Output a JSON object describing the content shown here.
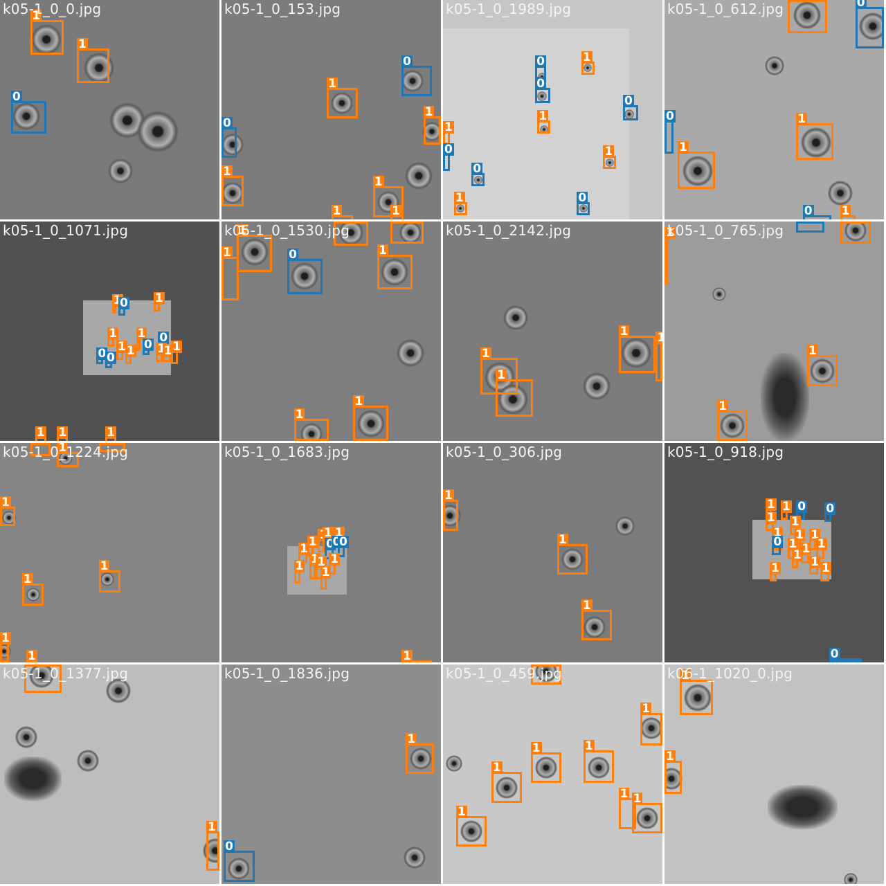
{
  "colors": {
    "class_0": "#1f77b4",
    "class_1": "#ff7f0e",
    "caption": "#f4f4f4",
    "separator": "#ffffff"
  },
  "tiles": [
    {
      "name": "k05-1_0_0.jpg",
      "bg": "#7a7a7a",
      "boxes": [
        [
          "1",
          0.14,
          0.09,
          0.15,
          0.16
        ],
        [
          "1",
          0.35,
          0.22,
          0.15,
          0.16
        ],
        [
          "0",
          0.05,
          0.46,
          0.16,
          0.15
        ]
      ]
    },
    {
      "name": "k05-1_0_153.jpg",
      "bg": "#7c7c7c",
      "boxes": [
        [
          "0",
          0.82,
          0.3,
          0.14,
          0.14
        ],
        [
          "1",
          0.48,
          0.4,
          0.14,
          0.14
        ],
        [
          "1",
          0.92,
          0.53,
          0.08,
          0.13
        ],
        [
          "0",
          0.0,
          0.58,
          0.07,
          0.14
        ],
        [
          "1",
          0.0,
          0.8,
          0.1,
          0.14
        ],
        [
          "1",
          0.69,
          0.85,
          0.14,
          0.14
        ],
        [
          "1",
          0.5,
          0.98,
          0.1,
          0.04
        ],
        [
          "1",
          0.77,
          0.98,
          0.06,
          0.04
        ]
      ]
    },
    {
      "name": "k05-1_0_1989.jpg",
      "bg": "#c6c6c6",
      "boxes": [
        [
          "1",
          0.63,
          0.28,
          0.06,
          0.06
        ],
        [
          "0",
          0.42,
          0.3,
          0.05,
          0.06
        ],
        [
          "0",
          0.42,
          0.4,
          0.07,
          0.07
        ],
        [
          "0",
          0.82,
          0.48,
          0.07,
          0.07
        ],
        [
          "1",
          0.43,
          0.55,
          0.06,
          0.06
        ],
        [
          "1",
          0.0,
          0.6,
          0.03,
          0.06
        ],
        [
          "0",
          0.0,
          0.7,
          0.03,
          0.08
        ],
        [
          "1",
          0.73,
          0.71,
          0.06,
          0.06
        ],
        [
          "0",
          0.13,
          0.79,
          0.06,
          0.06
        ],
        [
          "1",
          0.05,
          0.92,
          0.06,
          0.06
        ],
        [
          "0",
          0.61,
          0.92,
          0.06,
          0.06
        ]
      ]
    },
    {
      "name": "k05-1_0_612.jpg",
      "bg": "#a9a9a9",
      "boxes": [
        [
          "1",
          0.56,
          0.0,
          0.18,
          0.15
        ],
        [
          "0",
          0.87,
          0.03,
          0.13,
          0.19
        ],
        [
          "0",
          0.0,
          0.55,
          0.04,
          0.15
        ],
        [
          "1",
          0.6,
          0.56,
          0.17,
          0.17
        ],
        [
          "1",
          0.06,
          0.69,
          0.17,
          0.17
        ],
        [
          "0",
          0.63,
          0.98,
          0.13,
          0.04
        ],
        [
          "1",
          0.8,
          0.98,
          0.07,
          0.04
        ]
      ]
    },
    {
      "name": "k05-1_0_1071.jpg",
      "bg": "#515151",
      "boxes": [
        [
          "1",
          0.51,
          0.38,
          0.02,
          0.04
        ],
        [
          "0",
          0.54,
          0.39,
          0.03,
          0.04
        ],
        [
          "1",
          0.7,
          0.37,
          0.03,
          0.04
        ],
        [
          "1",
          0.62,
          0.53,
          0.02,
          0.06
        ],
        [
          "1",
          0.49,
          0.53,
          0.03,
          0.04
        ],
        [
          "0",
          0.72,
          0.55,
          0.03,
          0.03
        ],
        [
          "0",
          0.65,
          0.58,
          0.03,
          0.03
        ],
        [
          "1",
          0.53,
          0.59,
          0.03,
          0.04
        ],
        [
          "1",
          0.57,
          0.61,
          0.03,
          0.04
        ],
        [
          "0",
          0.44,
          0.62,
          0.03,
          0.03
        ],
        [
          "0",
          0.48,
          0.64,
          0.03,
          0.03
        ],
        [
          "1",
          0.71,
          0.6,
          0.03,
          0.04
        ],
        [
          "1",
          0.74,
          0.61,
          0.04,
          0.03
        ],
        [
          "1",
          0.78,
          0.59,
          0.03,
          0.06
        ],
        [
          "1",
          0.16,
          0.98,
          0.05,
          0.03
        ],
        [
          "1",
          0.26,
          0.98,
          0.05,
          0.03
        ],
        [
          "1",
          0.48,
          0.98,
          0.05,
          0.03
        ]
      ]
    },
    {
      "name": "k05-1_0_1530.jpg",
      "bg": "#7e7e7e",
      "boxes": [
        [
          "1",
          0.51,
          0.0,
          0.16,
          0.11
        ],
        [
          "1",
          0.77,
          0.0,
          0.15,
          0.1
        ],
        [
          "1",
          0.07,
          0.06,
          0.16,
          0.17
        ],
        [
          "1",
          0.0,
          0.16,
          0.08,
          0.2
        ],
        [
          "0",
          0.3,
          0.17,
          0.16,
          0.16
        ],
        [
          "1",
          0.71,
          0.15,
          0.16,
          0.16
        ],
        [
          "1",
          0.33,
          0.9,
          0.16,
          0.1
        ],
        [
          "1",
          0.6,
          0.84,
          0.16,
          0.16
        ]
      ]
    },
    {
      "name": "k05-1_0_2142.jpg",
      "bg": "#7c7c7c",
      "boxes": [
        [
          "1",
          0.8,
          0.52,
          0.17,
          0.17
        ],
        [
          "1",
          0.97,
          0.55,
          0.03,
          0.18
        ],
        [
          "1",
          0.17,
          0.62,
          0.17,
          0.17
        ],
        [
          "1",
          0.24,
          0.72,
          0.17,
          0.17
        ]
      ]
    },
    {
      "name": "k05-1_0_765.jpg",
      "bg": "#9c9c9c",
      "boxes": [
        [
          "1",
          0.8,
          0.0,
          0.14,
          0.1
        ],
        [
          "0",
          0.6,
          0.0,
          0.13,
          0.05
        ],
        [
          "1",
          0.0,
          0.07,
          0.02,
          0.22
        ],
        [
          "1",
          0.65,
          0.61,
          0.14,
          0.14
        ],
        [
          "1",
          0.24,
          0.86,
          0.14,
          0.14
        ]
      ]
    },
    {
      "name": "k05-1_0_1224.jpg",
      "bg": "#858585",
      "boxes": [
        [
          "1",
          0.14,
          0.0,
          0.09,
          0.06
        ],
        [
          "1",
          0.26,
          0.04,
          0.1,
          0.07
        ],
        [
          "1",
          0.45,
          0.0,
          0.12,
          0.04
        ],
        [
          "1",
          0.0,
          0.29,
          0.07,
          0.09
        ],
        [
          "1",
          0.45,
          0.58,
          0.1,
          0.1
        ],
        [
          "1",
          0.1,
          0.64,
          0.1,
          0.1
        ],
        [
          "1",
          0.0,
          0.91,
          0.04,
          0.09
        ],
        [
          "1",
          0.12,
          0.99,
          0.05,
          0.01
        ]
      ]
    },
    {
      "name": "k05-1_0_1683.jpg",
      "bg": "#7e7e7e",
      "boxes": [
        [
          "1",
          0.39,
          0.47,
          0.03,
          0.05
        ],
        [
          "1",
          0.44,
          0.44,
          0.03,
          0.06
        ],
        [
          "1",
          0.46,
          0.43,
          0.04,
          0.05
        ],
        [
          "1",
          0.51,
          0.43,
          0.03,
          0.05
        ],
        [
          "0",
          0.47,
          0.48,
          0.04,
          0.05
        ],
        [
          "0",
          0.5,
          0.47,
          0.04,
          0.05
        ],
        [
          "0",
          0.53,
          0.47,
          0.03,
          0.05
        ],
        [
          "1",
          0.35,
          0.5,
          0.04,
          0.05
        ],
        [
          "1",
          0.4,
          0.55,
          0.03,
          0.07
        ],
        [
          "1",
          0.43,
          0.56,
          0.03,
          0.06
        ],
        [
          "1",
          0.49,
          0.55,
          0.03,
          0.05
        ],
        [
          "1",
          0.33,
          0.58,
          0.03,
          0.06
        ],
        [
          "1",
          0.45,
          0.61,
          0.03,
          0.06
        ],
        [
          "1",
          0.82,
          0.99,
          0.14,
          0.01
        ]
      ]
    },
    {
      "name": "k05-1_0_306.jpg",
      "bg": "#7b7b7b",
      "boxes": [
        [
          "1",
          0.0,
          0.26,
          0.07,
          0.14
        ],
        [
          "1",
          0.52,
          0.46,
          0.14,
          0.14
        ],
        [
          "1",
          0.63,
          0.76,
          0.14,
          0.14
        ]
      ]
    },
    {
      "name": "k05-1_0_918.jpg",
      "bg": "#525252",
      "boxes": [
        [
          "1",
          0.46,
          0.3,
          0.03,
          0.04
        ],
        [
          "1",
          0.53,
          0.31,
          0.03,
          0.04
        ],
        [
          "0",
          0.6,
          0.31,
          0.04,
          0.04
        ],
        [
          "0",
          0.73,
          0.32,
          0.03,
          0.04
        ],
        [
          "1",
          0.46,
          0.36,
          0.04,
          0.04
        ],
        [
          "1",
          0.57,
          0.38,
          0.04,
          0.04
        ],
        [
          "1",
          0.49,
          0.43,
          0.05,
          0.06
        ],
        [
          "1",
          0.59,
          0.44,
          0.03,
          0.05
        ],
        [
          "1",
          0.66,
          0.44,
          0.03,
          0.05
        ],
        [
          "0",
          0.49,
          0.47,
          0.04,
          0.04
        ],
        [
          "1",
          0.56,
          0.48,
          0.03,
          0.05
        ],
        [
          "1",
          0.62,
          0.5,
          0.04,
          0.05
        ],
        [
          "1",
          0.69,
          0.48,
          0.04,
          0.05
        ],
        [
          "1",
          0.58,
          0.53,
          0.03,
          0.04
        ],
        [
          "1",
          0.66,
          0.56,
          0.04,
          0.04
        ],
        [
          "1",
          0.48,
          0.59,
          0.03,
          0.04
        ],
        [
          "1",
          0.71,
          0.59,
          0.04,
          0.04
        ],
        [
          "0",
          0.75,
          0.98,
          0.15,
          0.02
        ]
      ]
    },
    {
      "name": "k05-1_0_1377.jpg",
      "bg": "#bdbdbd",
      "boxes": [
        [
          "1",
          0.11,
          0.0,
          0.17,
          0.13
        ],
        [
          "1",
          0.94,
          0.76,
          0.06,
          0.18
        ],
        [
          "0",
          0.0,
          0.0,
          0.0,
          0.0
        ]
      ]
    },
    {
      "name": "k05-1_0_1836.jpg",
      "bg": "#8d8d8d",
      "boxes": [
        [
          "1",
          0.84,
          0.36,
          0.13,
          0.14
        ],
        [
          "0",
          0.01,
          0.85,
          0.14,
          0.14
        ]
      ]
    },
    {
      "name": "k05-1_0_459.jpg",
      "bg": "#c8c8c8",
      "boxes": [
        [
          "1",
          0.4,
          0.0,
          0.14,
          0.09
        ],
        [
          "1",
          0.9,
          0.22,
          0.1,
          0.15
        ],
        [
          "1",
          0.4,
          0.4,
          0.14,
          0.14
        ],
        [
          "1",
          0.64,
          0.39,
          0.14,
          0.15
        ],
        [
          "1",
          0.22,
          0.49,
          0.14,
          0.14
        ],
        [
          "1",
          0.8,
          0.61,
          0.08,
          0.14
        ],
        [
          "1",
          0.86,
          0.63,
          0.14,
          0.14
        ],
        [
          "1",
          0.06,
          0.69,
          0.14,
          0.14
        ]
      ]
    },
    {
      "name": "k06-1_1020_0.jpg",
      "bg": "#c2c2c2",
      "boxes": [
        [
          "1",
          0.07,
          0.07,
          0.15,
          0.16
        ],
        [
          "1",
          0.0,
          0.44,
          0.08,
          0.15
        ]
      ]
    }
  ]
}
